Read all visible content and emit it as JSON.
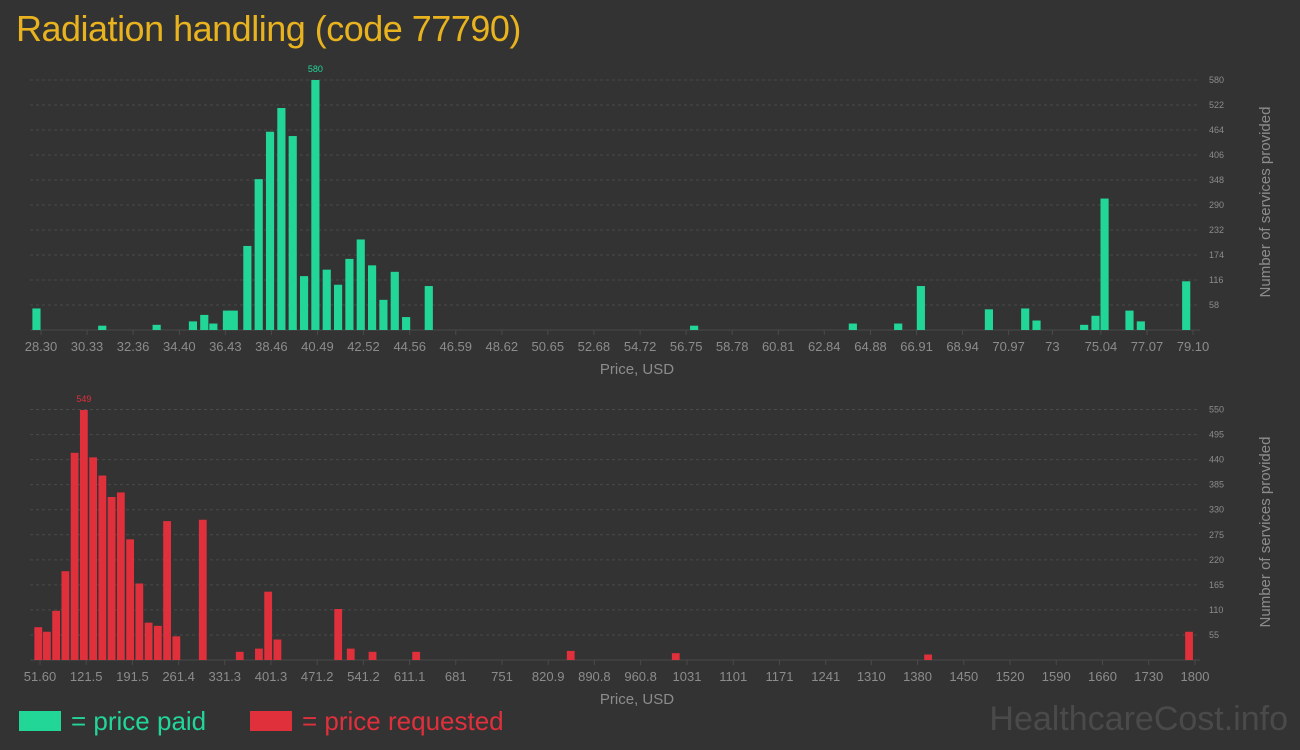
{
  "page": {
    "title": "Radiation handling (code 77790)",
    "watermark": "HealthcareCost.info"
  },
  "legend": {
    "paid_label": "= price paid",
    "requested_label": "= price requested"
  },
  "colors": {
    "background": "#333333",
    "title": "#e8b31e",
    "paid": "#22d698",
    "requested": "#e0303c",
    "axis_text": "#8c8c8c",
    "grid": "#4a4a4a"
  },
  "chart_data": [
    {
      "type": "bar",
      "name": "price-paid",
      "xlabel": "Price, USD",
      "ylabel": "Number of services provided",
      "ylim": [
        0,
        580
      ],
      "y_ticks": [
        58,
        116,
        174,
        232,
        290,
        348,
        406,
        464,
        522,
        580
      ],
      "x_ticks": [
        {
          "label": "28.30",
          "x": 28.3
        },
        {
          "label": "30.33",
          "x": 30.33
        },
        {
          "label": "32.36",
          "x": 32.36
        },
        {
          "label": "34.40",
          "x": 34.4
        },
        {
          "label": "36.43",
          "x": 36.43
        },
        {
          "label": "38.46",
          "x": 38.46
        },
        {
          "label": "40.49",
          "x": 40.49
        },
        {
          "label": "42.52",
          "x": 42.52
        },
        {
          "label": "44.56",
          "x": 44.56
        },
        {
          "label": "46.59",
          "x": 46.59
        },
        {
          "label": "48.62",
          "x": 48.62
        },
        {
          "label": "50.65",
          "x": 50.65
        },
        {
          "label": "52.68",
          "x": 52.68
        },
        {
          "label": "54.72",
          "x": 54.72
        },
        {
          "label": "56.75",
          "x": 56.75
        },
        {
          "label": "58.78",
          "x": 58.78
        },
        {
          "label": "60.81",
          "x": 60.81
        },
        {
          "label": "62.84",
          "x": 62.84
        },
        {
          "label": "64.88",
          "x": 64.88
        },
        {
          "label": "66.91",
          "x": 66.91
        },
        {
          "label": "68.94",
          "x": 68.94
        },
        {
          "label": "70.97",
          "x": 70.97
        },
        {
          "label": "73",
          "x": 72.9
        },
        {
          "label": "75.04",
          "x": 75.04
        },
        {
          "label": "77.07",
          "x": 77.07
        },
        {
          "label": "79.10",
          "x": 79.1
        }
      ],
      "x_domain": [
        28.3,
        79.1
      ],
      "bar_width": 0.36,
      "peak_label": "580",
      "points": [
        {
          "x": 28.1,
          "y": 50
        },
        {
          "x": 31.0,
          "y": 10
        },
        {
          "x": 33.4,
          "y": 12
        },
        {
          "x": 35.0,
          "y": 20
        },
        {
          "x": 35.5,
          "y": 35
        },
        {
          "x": 35.9,
          "y": 15
        },
        {
          "x": 36.5,
          "y": 45
        },
        {
          "x": 36.8,
          "y": 45
        },
        {
          "x": 37.4,
          "y": 195
        },
        {
          "x": 37.9,
          "y": 350
        },
        {
          "x": 38.4,
          "y": 460
        },
        {
          "x": 38.9,
          "y": 515
        },
        {
          "x": 39.4,
          "y": 450
        },
        {
          "x": 39.9,
          "y": 125
        },
        {
          "x": 40.4,
          "y": 580
        },
        {
          "x": 40.9,
          "y": 140
        },
        {
          "x": 41.4,
          "y": 105
        },
        {
          "x": 41.9,
          "y": 165
        },
        {
          "x": 42.4,
          "y": 210
        },
        {
          "x": 42.9,
          "y": 150
        },
        {
          "x": 43.4,
          "y": 70
        },
        {
          "x": 43.9,
          "y": 135
        },
        {
          "x": 44.4,
          "y": 30
        },
        {
          "x": 45.4,
          "y": 102
        },
        {
          "x": 57.1,
          "y": 10
        },
        {
          "x": 64.1,
          "y": 15
        },
        {
          "x": 66.1,
          "y": 15
        },
        {
          "x": 67.1,
          "y": 102
        },
        {
          "x": 70.1,
          "y": 48
        },
        {
          "x": 71.7,
          "y": 50
        },
        {
          "x": 72.2,
          "y": 22
        },
        {
          "x": 74.3,
          "y": 12
        },
        {
          "x": 74.8,
          "y": 33
        },
        {
          "x": 75.2,
          "y": 305
        },
        {
          "x": 76.3,
          "y": 45
        },
        {
          "x": 76.8,
          "y": 20
        },
        {
          "x": 78.8,
          "y": 113
        }
      ]
    },
    {
      "type": "bar",
      "name": "price-requested",
      "xlabel": "Price, USD",
      "ylabel": "Number of services provided",
      "ylim": [
        0,
        549
      ],
      "y_ticks": [
        55,
        110,
        165,
        220,
        275,
        330,
        385,
        440,
        495,
        550
      ],
      "x_ticks": [
        {
          "label": "51.60",
          "x": 51.6
        },
        {
          "label": "121.5",
          "x": 121.5
        },
        {
          "label": "191.5",
          "x": 191.5
        },
        {
          "label": "261.4",
          "x": 261.4
        },
        {
          "label": "331.3",
          "x": 331.3
        },
        {
          "label": "401.3",
          "x": 401.3
        },
        {
          "label": "471.2",
          "x": 471.2
        },
        {
          "label": "541.2",
          "x": 541.2
        },
        {
          "label": "611.1",
          "x": 611.1
        },
        {
          "label": "681",
          "x": 681
        },
        {
          "label": "751",
          "x": 751
        },
        {
          "label": "820.9",
          "x": 820.9
        },
        {
          "label": "890.8",
          "x": 890.8
        },
        {
          "label": "960.8",
          "x": 960.8
        },
        {
          "label": "1031",
          "x": 1031
        },
        {
          "label": "1101",
          "x": 1101
        },
        {
          "label": "1171",
          "x": 1171
        },
        {
          "label": "1241",
          "x": 1241
        },
        {
          "label": "1310",
          "x": 1310
        },
        {
          "label": "1380",
          "x": 1380
        },
        {
          "label": "1450",
          "x": 1450
        },
        {
          "label": "1520",
          "x": 1520
        },
        {
          "label": "1590",
          "x": 1590
        },
        {
          "label": "1660",
          "x": 1660
        },
        {
          "label": "1730",
          "x": 1730
        },
        {
          "label": "1800",
          "x": 1800
        }
      ],
      "x_domain": [
        51.6,
        1800
      ],
      "bar_width": 11.8,
      "peak_label": "549",
      "points": [
        {
          "x": 49,
          "y": 72
        },
        {
          "x": 62,
          "y": 62
        },
        {
          "x": 76,
          "y": 108
        },
        {
          "x": 90,
          "y": 195
        },
        {
          "x": 104,
          "y": 455
        },
        {
          "x": 118,
          "y": 549
        },
        {
          "x": 132,
          "y": 445
        },
        {
          "x": 146,
          "y": 405
        },
        {
          "x": 160,
          "y": 358
        },
        {
          "x": 174,
          "y": 368
        },
        {
          "x": 188,
          "y": 265
        },
        {
          "x": 202,
          "y": 168
        },
        {
          "x": 216,
          "y": 82
        },
        {
          "x": 230,
          "y": 75
        },
        {
          "x": 244,
          "y": 305
        },
        {
          "x": 258,
          "y": 52
        },
        {
          "x": 298,
          "y": 308
        },
        {
          "x": 354,
          "y": 18
        },
        {
          "x": 383,
          "y": 25
        },
        {
          "x": 397,
          "y": 150
        },
        {
          "x": 411,
          "y": 45
        },
        {
          "x": 503,
          "y": 112
        },
        {
          "x": 522,
          "y": 25
        },
        {
          "x": 555,
          "y": 18
        },
        {
          "x": 621,
          "y": 18
        },
        {
          "x": 855,
          "y": 20
        },
        {
          "x": 1014,
          "y": 15
        },
        {
          "x": 1396,
          "y": 12
        },
        {
          "x": 1791,
          "y": 62
        }
      ]
    }
  ]
}
